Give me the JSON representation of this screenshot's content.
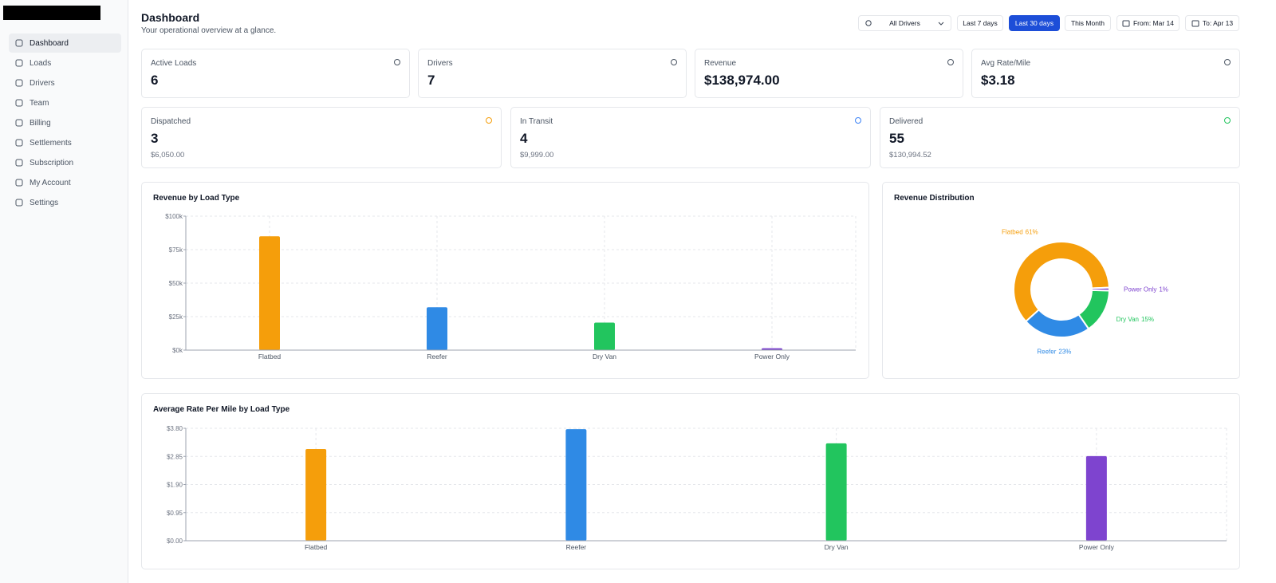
{
  "sidebar": {
    "items": [
      "Dashboard",
      "Loads",
      "Drivers",
      "Team",
      "Billing",
      "Settlements",
      "Subscription",
      "My Account",
      "Settings"
    ]
  },
  "header": {
    "title": "Dashboard",
    "subtitle": "Your operational overview at a glance."
  },
  "filters": {
    "driver": "All Drivers",
    "ranges": [
      "Last 7 days",
      "Last 30 days",
      "This Month"
    ],
    "from": "From: Mar 14",
    "to": "To: Apr 13"
  },
  "stats": {
    "top": [
      {
        "label": "Active Loads",
        "value": "6"
      },
      {
        "label": "Drivers",
        "value": "7"
      },
      {
        "label": "Revenue",
        "value": "$138,974.00"
      },
      {
        "label": "Avg Rate/Mile",
        "value": "$3.18"
      }
    ],
    "status": [
      {
        "label": "Dispatched",
        "value": "3",
        "amount": "$6,050.00"
      },
      {
        "label": "In Transit",
        "value": "4",
        "amount": "$9,999.00"
      },
      {
        "label": "Delivered",
        "value": "55",
        "amount": "$130,994.52"
      }
    ]
  },
  "chart_data": [
    {
      "type": "bar",
      "title": "Revenue by Load Type",
      "categories": [
        "Flatbed",
        "Reefer",
        "Dry Van",
        "Power Only"
      ],
      "values": [
        85000,
        32000,
        20500,
        1400
      ],
      "colors": [
        "#f59e0b",
        "#2f8ae5",
        "#22c55e",
        "#7e44cf"
      ],
      "ylim": [
        0,
        100000
      ],
      "yticks": [
        {
          "value": 0,
          "label": "$0k"
        },
        {
          "value": 25000,
          "label": "$25k"
        },
        {
          "value": 50000,
          "label": "$50k"
        },
        {
          "value": 75000,
          "label": "$75k"
        },
        {
          "value": 100000,
          "label": "$100k"
        }
      ],
      "grid": true
    },
    {
      "type": "pie",
      "title": "Revenue Distribution",
      "categories": [
        "Flatbed",
        "Reefer",
        "Dry Van",
        "Power Only"
      ],
      "values": [
        61,
        23,
        15,
        1
      ],
      "value_labels": [
        "61%",
        "23%",
        "15%",
        "1%"
      ],
      "colors": [
        "#f59e0b",
        "#2f8ae5",
        "#22c55e",
        "#7e44cf"
      ]
    },
    {
      "type": "bar",
      "title": "Average Rate Per Mile by Load Type",
      "categories": [
        "Flatbed",
        "Reefer",
        "Dry Van",
        "Power Only"
      ],
      "values": [
        3.1,
        3.77,
        3.29,
        2.86
      ],
      "colors": [
        "#f59e0b",
        "#2f8ae5",
        "#22c55e",
        "#7e44cf"
      ],
      "ylim": [
        0,
        3.8
      ],
      "yticks": [
        {
          "value": 0,
          "label": "$0.00"
        },
        {
          "value": 0.95,
          "label": "$0.95"
        },
        {
          "value": 1.9,
          "label": "$1.90"
        },
        {
          "value": 2.85,
          "label": "$2.85"
        },
        {
          "value": 3.8,
          "label": "$3.80"
        }
      ],
      "grid": true
    }
  ]
}
